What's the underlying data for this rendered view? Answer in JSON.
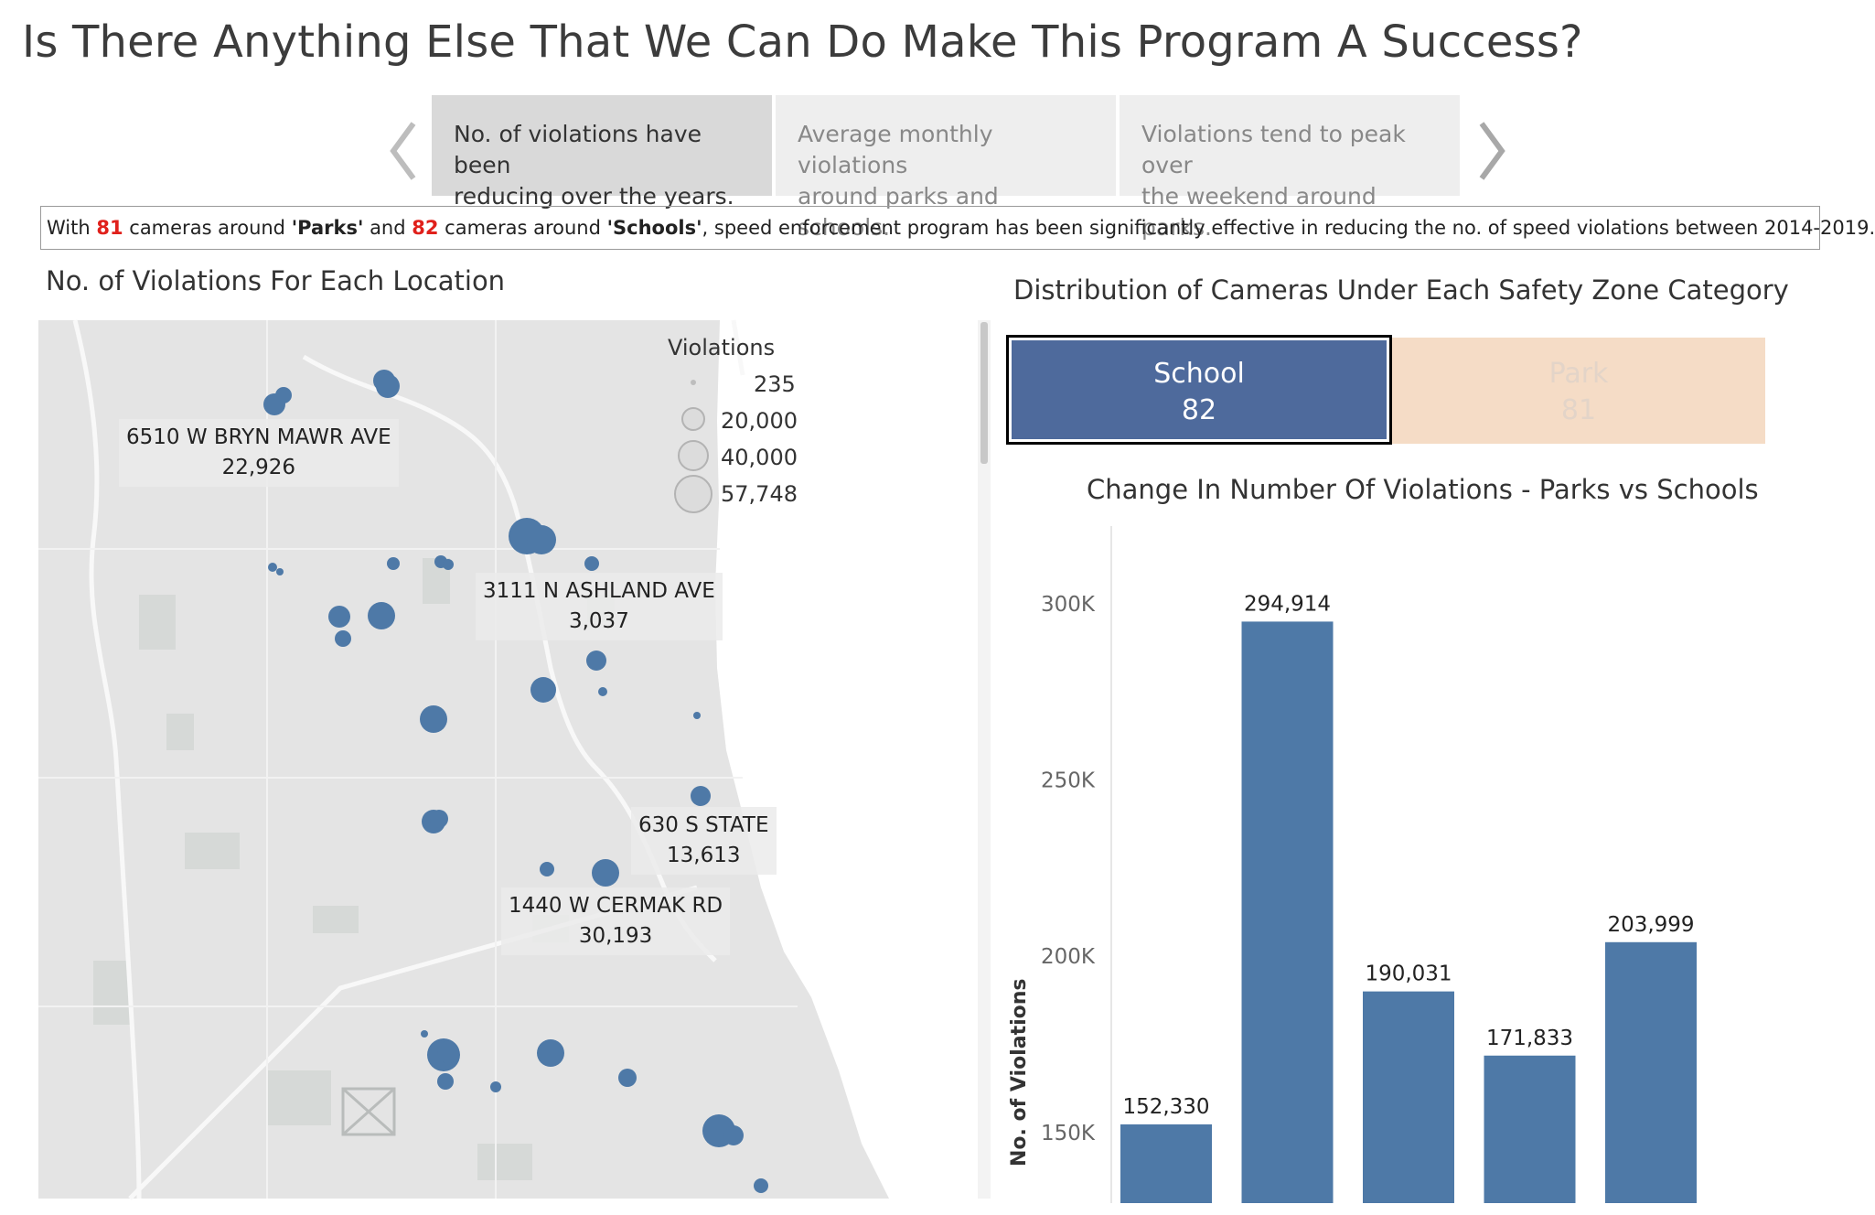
{
  "page_title": "Is There Anything Else That We Can Do Make This Program A Success?",
  "story_points": [
    {
      "label_line1": "No. of violations have been",
      "label_line2": "reducing over the years.",
      "active": true
    },
    {
      "label_line1": "Average monthly violations",
      "label_line2": "around parks and schools.",
      "active": false
    },
    {
      "label_line1": "Violations tend to peak over",
      "label_line2": "the weekend around parks.",
      "active": false
    }
  ],
  "caption": {
    "part1": "With ",
    "parks_count": "81",
    "part2": " cameras around ",
    "parks_word": "'Parks'",
    "part3": " and ",
    "schools_count": "82",
    "part4": " cameras around ",
    "schools_word": "'Schools'",
    "part5": ", speed enforcement program has been significantly effective in reducing the no. of speed violations between 2014-2019."
  },
  "map_panel": {
    "title": "No. of Violations For Each Location",
    "legend": {
      "title": "Violations",
      "entries": [
        "235",
        "20,000",
        "40,000",
        "57,748"
      ]
    },
    "labels": [
      {
        "address": "6510 W BRYN MAWR AVE",
        "value": "22,926"
      },
      {
        "address": "3111 N ASHLAND AVE",
        "value": "3,037"
      },
      {
        "address": "630 S STATE",
        "value": "13,613"
      },
      {
        "address": "1440 W CERMAK RD",
        "value": "30,193"
      }
    ],
    "marker_color": "#4e79a7"
  },
  "distribution_panel": {
    "title": "Distribution of Cameras Under Each Safety Zone Category",
    "categories": [
      {
        "name": "School",
        "count": "82",
        "color": "#4e6a9c"
      },
      {
        "name": "Park",
        "count": "81",
        "color": "#f5dcc6"
      }
    ]
  },
  "chart_data": {
    "type": "bar",
    "title": "Change In Number Of Violations - Parks vs Schools",
    "ylabel": "No. of Violations",
    "xlabel": "",
    "categories": [
      "",
      "",
      "",
      "",
      ""
    ],
    "values": [
      152330,
      294914,
      190031,
      171833,
      203999
    ],
    "data_labels": [
      "152,330",
      "294,914",
      "190,031",
      "171,833",
      "203,999"
    ],
    "yticks": [
      150000,
      200000,
      250000,
      300000
    ],
    "ytick_labels": [
      "150K",
      "200K",
      "250K",
      "300K"
    ],
    "ylim": [
      130000,
      322000
    ],
    "color": "#4e79a7",
    "grid": false
  }
}
